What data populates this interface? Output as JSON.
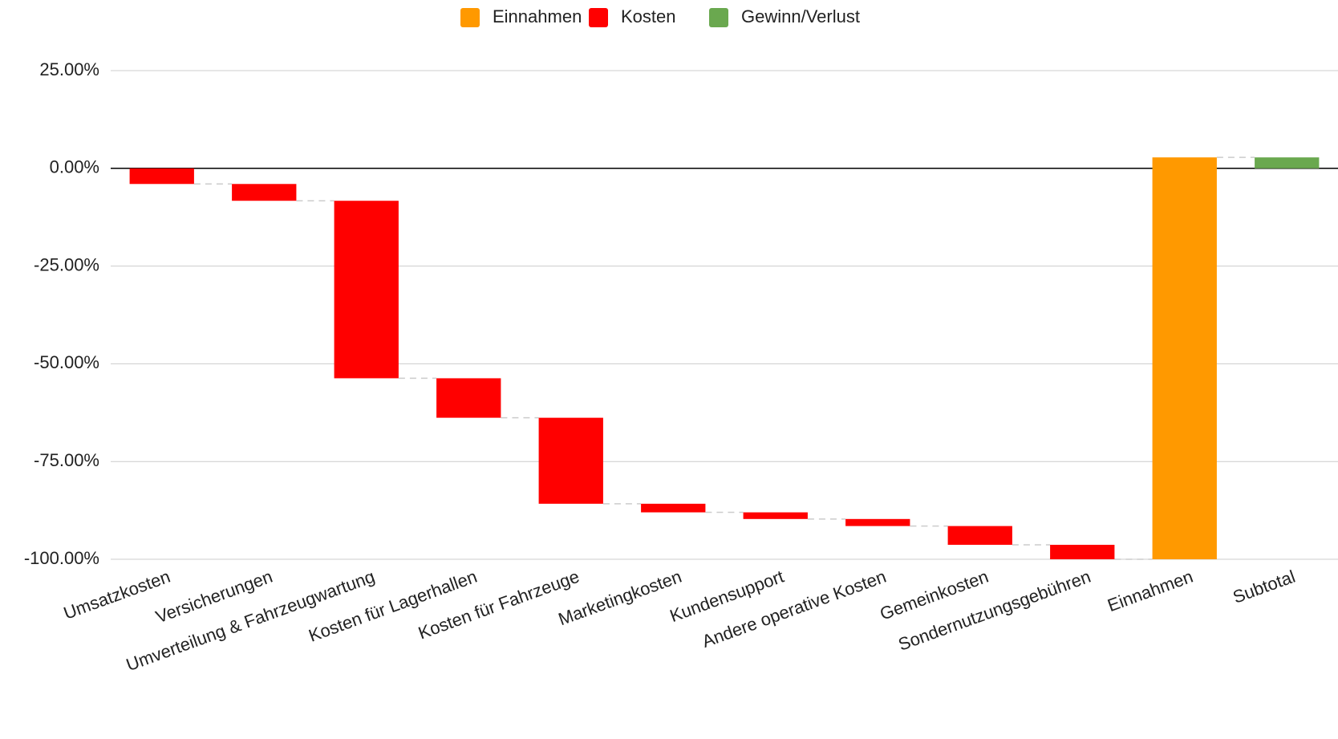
{
  "chart_data": {
    "type": "waterfall",
    "categories": [
      "Umsatzkosten",
      "Versicherungen",
      "Umverteilung & Fahrzeugwartung",
      "Kosten für Lagerhallen",
      "Kosten für Fahrzeuge",
      "Marketingkosten",
      "Kundensupport",
      "Andere operative Kosten",
      "Gemeinkosten",
      "Sondernutzungsgebühren",
      "Einnahmen",
      "Subtotal"
    ],
    "series": [
      {
        "name": "Einnahmen",
        "color": "#ff9900",
        "values": [
          null,
          null,
          null,
          null,
          null,
          null,
          null,
          null,
          null,
          null,
          102.8,
          null
        ]
      },
      {
        "name": "Kosten",
        "color": "#ff0000",
        "values": [
          -4,
          -4.3,
          -45.4,
          -10.1,
          -22,
          -2.2,
          -1.7,
          -1.8,
          -4.8,
          -3.7,
          null,
          null
        ]
      },
      {
        "name": "Gewinn/Verlust",
        "color": "#6aa84f",
        "values": [
          null,
          null,
          null,
          null,
          null,
          null,
          null,
          null,
          null,
          null,
          null,
          2.8
        ]
      }
    ],
    "ylim": [
      -100,
      25
    ],
    "yticks": [
      {
        "value": -100,
        "label": "-100.00%"
      },
      {
        "value": -75,
        "label": "-75.00%"
      },
      {
        "value": -50,
        "label": "-50.00%"
      },
      {
        "value": -25,
        "label": "-25.00%"
      },
      {
        "value": 0,
        "label": "0.00%"
      },
      {
        "value": 25,
        "label": "25.00%"
      }
    ],
    "grid": true,
    "legend": "top"
  }
}
